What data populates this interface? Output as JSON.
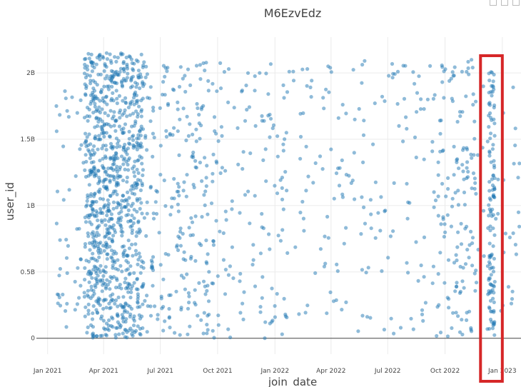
{
  "chart_data": {
    "type": "scatter",
    "title": "M6EzvEdz",
    "xlabel": "join_date",
    "ylabel": "user_id",
    "x_range": [
      "2020-12-14",
      "2023-01-31"
    ],
    "ylim": [
      -0.12,
      2.27
    ],
    "y_unit": "billions",
    "x_ticks": [
      {
        "date": "2021-01-01",
        "label": "Jan 2021"
      },
      {
        "date": "2021-04-01",
        "label": "Apr 2021"
      },
      {
        "date": "2021-07-01",
        "label": "Jul 2021"
      },
      {
        "date": "2021-10-01",
        "label": "Oct 2021"
      },
      {
        "date": "2022-01-01",
        "label": "Jan 2022"
      },
      {
        "date": "2022-04-01",
        "label": "Apr 2022"
      },
      {
        "date": "2022-07-01",
        "label": "Jul 2022"
      },
      {
        "date": "2022-10-01",
        "label": "Oct 2022"
      },
      {
        "date": "2023-01-01",
        "label": "Jan 2023"
      }
    ],
    "y_ticks": [
      {
        "value": 0,
        "label": "0"
      },
      {
        "value": 0.5,
        "label": "0.5B"
      },
      {
        "value": 1,
        "label": "1B"
      },
      {
        "value": 1.5,
        "label": "1.5B"
      },
      {
        "value": 2,
        "label": "2B"
      }
    ],
    "grid": true,
    "marker_color": "#1f77b4",
    "marker_opacity": 0.5,
    "highlight": {
      "x_start": "2022-11-27",
      "x_end": "2023-01-01",
      "color": "#d62728"
    },
    "series": [
      {
        "clusters": [
          {
            "x_start": "2021-03-01",
            "x_end": "2021-04-20",
            "y_min": 0,
            "y_max": 2.15,
            "count": 520
          },
          {
            "x_start": "2021-04-20",
            "x_end": "2021-06-05",
            "y_min": 0,
            "y_max": 2.15,
            "count": 420
          },
          {
            "x_start": "2021-01-15",
            "x_end": "2021-03-01",
            "y_min": 0,
            "y_max": 1.9,
            "count": 45
          },
          {
            "x_start": "2021-06-05",
            "x_end": "2021-09-30",
            "y_min": 0,
            "y_max": 2.1,
            "count": 240
          },
          {
            "x_start": "2021-10-01",
            "x_end": "2022-01-20",
            "y_min": 0,
            "y_max": 2.1,
            "count": 120
          },
          {
            "x_start": "2022-01-20",
            "x_end": "2022-09-20",
            "y_min": 0,
            "y_max": 2.1,
            "count": 170
          },
          {
            "x_start": "2022-09-20",
            "x_end": "2022-11-20",
            "y_min": 0,
            "y_max": 2.1,
            "count": 140
          },
          {
            "x_start": "2022-12-10",
            "x_end": "2022-12-20",
            "y_min": 0.02,
            "y_max": 2.05,
            "count": 110
          },
          {
            "x_start": "2022-11-20",
            "x_end": "2023-01-31",
            "y_min": 0,
            "y_max": 2.0,
            "count": 45
          }
        ]
      }
    ]
  }
}
